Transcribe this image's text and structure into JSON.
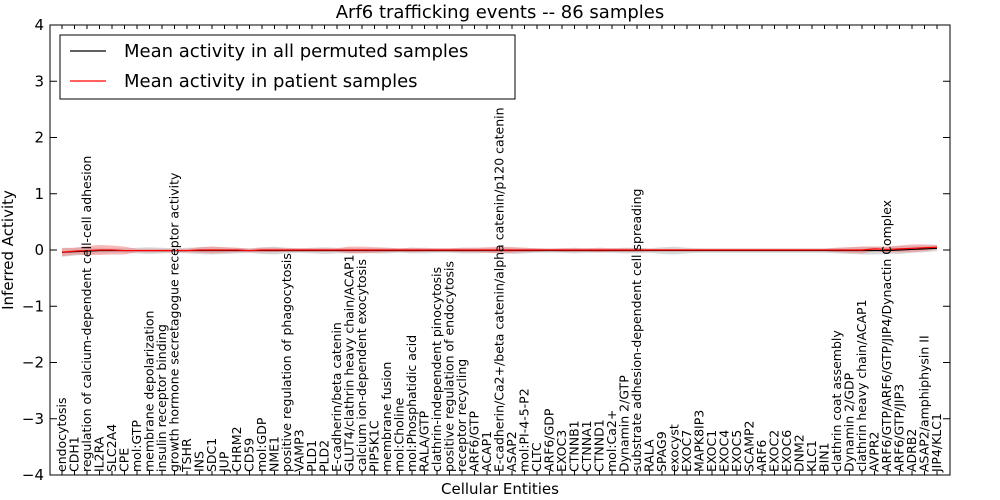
{
  "chart_data": {
    "type": "line",
    "title": "Arf6 trafficking events -- 86 samples",
    "xlabel": "Cellular Entities",
    "ylabel": "Inferred Activity",
    "ylim": [
      -4,
      4
    ],
    "yticks": [
      "−4",
      "−3",
      "−2",
      "−1",
      "0",
      "1",
      "2",
      "3",
      "4"
    ],
    "grid": false,
    "legend_position": "top-left",
    "categories": [
      "endocytosis",
      "CDH1",
      "regulation of calcium-dependent cell-cell adhesion",
      "IL2RA",
      "SLC2A4",
      "CPE",
      "mol:GTP",
      "membrane depolarization",
      "insulin receptor binding",
      "growth hormone secretagogue receptor activity",
      "TSHR",
      "INS",
      "SDC1",
      "JUP",
      "CHRM2",
      "CD59",
      "mol:GDP",
      "NME1",
      "positive regulation of phagocytosis",
      "VAMP3",
      "PLD1",
      "PLD2",
      "E-cadherin/beta catenin",
      "GLUT4/clathrin heavy chain/ACAP1",
      "calcium ion-dependent exocytosis",
      "PIP5K1C",
      "membrane fusion",
      "mol:Choline",
      "mol:Phosphatidic acid",
      "RALA/GTP",
      "clathrin-independent pinocytosis",
      "positive regulation of endocytosis",
      "receptor recycling",
      "ARF6/GTP",
      "ACAP1",
      "E-cadherin/Ca2+/beta catenin/alpha catenin/p120 catenin",
      "ASAP2",
      "mol:PI-4-5-P2",
      "CLTC",
      "ARF6/GDP",
      "EXOC3",
      "CTNNB1",
      "CTNNA1",
      "CTNND1",
      "mol:Ca2+",
      "Dynamin 2/GTP",
      "substrate adhesion-dependent cell spreading",
      "RALA",
      "SPAG9",
      "exocyst",
      "EXOC7",
      "MAPK8IP3",
      "EXOC1",
      "EXOC4",
      "EXOC5",
      "SCAMP2",
      "ARF6",
      "EXOC2",
      "EXOC6",
      "DNM2",
      "KLC1",
      "BIN1",
      "clathrin coat assembly",
      "Dynamin 2/GDP",
      "clathrin heavy chain/ACAP1",
      "AVPR2",
      "ARF6/GTP/ARF6/GTP/JIP4/Dynactin Complex",
      "ARF6/GTP/JIP3",
      "ADRB2",
      "ASAP2/amphiphysin II",
      "JIP4/KLC1"
    ],
    "series": [
      {
        "name": "Mean activity in all permuted samples",
        "color": "#000000",
        "band_color": "#aaaaaa",
        "values": [
          -0.04,
          -0.03,
          -0.02,
          -0.01,
          -0.01,
          -0.01,
          -0.01,
          -0.01,
          -0.01,
          -0.01,
          -0.01,
          -0.01,
          -0.01,
          -0.01,
          -0.01,
          -0.01,
          -0.01,
          -0.01,
          -0.01,
          -0.01,
          -0.01,
          -0.01,
          -0.01,
          -0.01,
          -0.01,
          -0.01,
          -0.01,
          -0.01,
          -0.01,
          -0.01,
          -0.01,
          -0.01,
          -0.01,
          -0.01,
          -0.01,
          -0.01,
          -0.01,
          -0.01,
          -0.01,
          -0.01,
          -0.01,
          -0.01,
          -0.01,
          -0.01,
          -0.01,
          -0.01,
          -0.01,
          -0.01,
          -0.01,
          -0.01,
          -0.01,
          -0.01,
          -0.01,
          -0.01,
          -0.01,
          -0.01,
          -0.01,
          -0.01,
          -0.01,
          -0.01,
          -0.01,
          -0.01,
          -0.01,
          -0.01,
          -0.01,
          -0.01,
          -0.01,
          0.0,
          0.01,
          0.02,
          0.03
        ],
        "band": [
          0.08,
          0.07,
          0.06,
          0.05,
          0.04,
          0.04,
          0.05,
          0.06,
          0.05,
          0.04,
          0.05,
          0.06,
          0.07,
          0.06,
          0.05,
          0.04,
          0.06,
          0.07,
          0.05,
          0.04,
          0.05,
          0.06,
          0.05,
          0.05,
          0.04,
          0.05,
          0.05,
          0.04,
          0.05,
          0.05,
          0.04,
          0.04,
          0.05,
          0.05,
          0.04,
          0.05,
          0.06,
          0.05,
          0.04,
          0.04,
          0.04,
          0.05,
          0.04,
          0.04,
          0.04,
          0.05,
          0.05,
          0.04,
          0.06,
          0.07,
          0.05,
          0.04,
          0.04,
          0.04,
          0.04,
          0.04,
          0.04,
          0.04,
          0.04,
          0.04,
          0.04,
          0.04,
          0.05,
          0.06,
          0.07,
          0.07,
          0.06,
          0.07,
          0.06,
          0.06,
          0.05
        ]
      },
      {
        "name": "Mean activity in patient samples",
        "color": "#ff0000",
        "band_color": "#f08080",
        "values": [
          -0.04,
          -0.02,
          -0.01,
          0.0,
          0.0,
          -0.01,
          -0.01,
          -0.01,
          -0.01,
          -0.01,
          -0.01,
          0.0,
          0.0,
          0.0,
          0.0,
          -0.01,
          0.0,
          0.0,
          0.0,
          0.0,
          0.0,
          0.0,
          0.0,
          0.0,
          0.0,
          0.0,
          0.0,
          0.0,
          0.0,
          0.0,
          0.0,
          0.0,
          0.0,
          0.0,
          0.0,
          0.0,
          0.0,
          0.0,
          0.0,
          0.0,
          0.0,
          0.0,
          0.0,
          0.0,
          0.0,
          0.0,
          0.0,
          0.0,
          0.0,
          0.0,
          0.0,
          0.0,
          0.0,
          0.0,
          0.0,
          0.0,
          0.0,
          0.0,
          0.0,
          0.0,
          0.0,
          0.0,
          0.0,
          0.0,
          0.0,
          0.02,
          0.01,
          0.02,
          0.03,
          0.04,
          0.05
        ],
        "band": [
          0.07,
          0.06,
          0.08,
          0.09,
          0.08,
          0.07,
          0.03,
          0.03,
          0.03,
          0.03,
          0.03,
          0.05,
          0.06,
          0.05,
          0.04,
          0.03,
          0.04,
          0.04,
          0.03,
          0.03,
          0.03,
          0.03,
          0.03,
          0.06,
          0.06,
          0.05,
          0.04,
          0.03,
          0.04,
          0.03,
          0.03,
          0.03,
          0.04,
          0.04,
          0.05,
          0.06,
          0.05,
          0.04,
          0.03,
          0.02,
          0.03,
          0.03,
          0.03,
          0.04,
          0.03,
          0.03,
          0.03,
          0.02,
          0.02,
          0.02,
          0.02,
          0.02,
          0.02,
          0.02,
          0.02,
          0.02,
          0.02,
          0.02,
          0.02,
          0.02,
          0.02,
          0.02,
          0.04,
          0.05,
          0.06,
          0.04,
          0.05,
          0.06,
          0.07,
          0.06,
          0.04
        ]
      }
    ]
  }
}
